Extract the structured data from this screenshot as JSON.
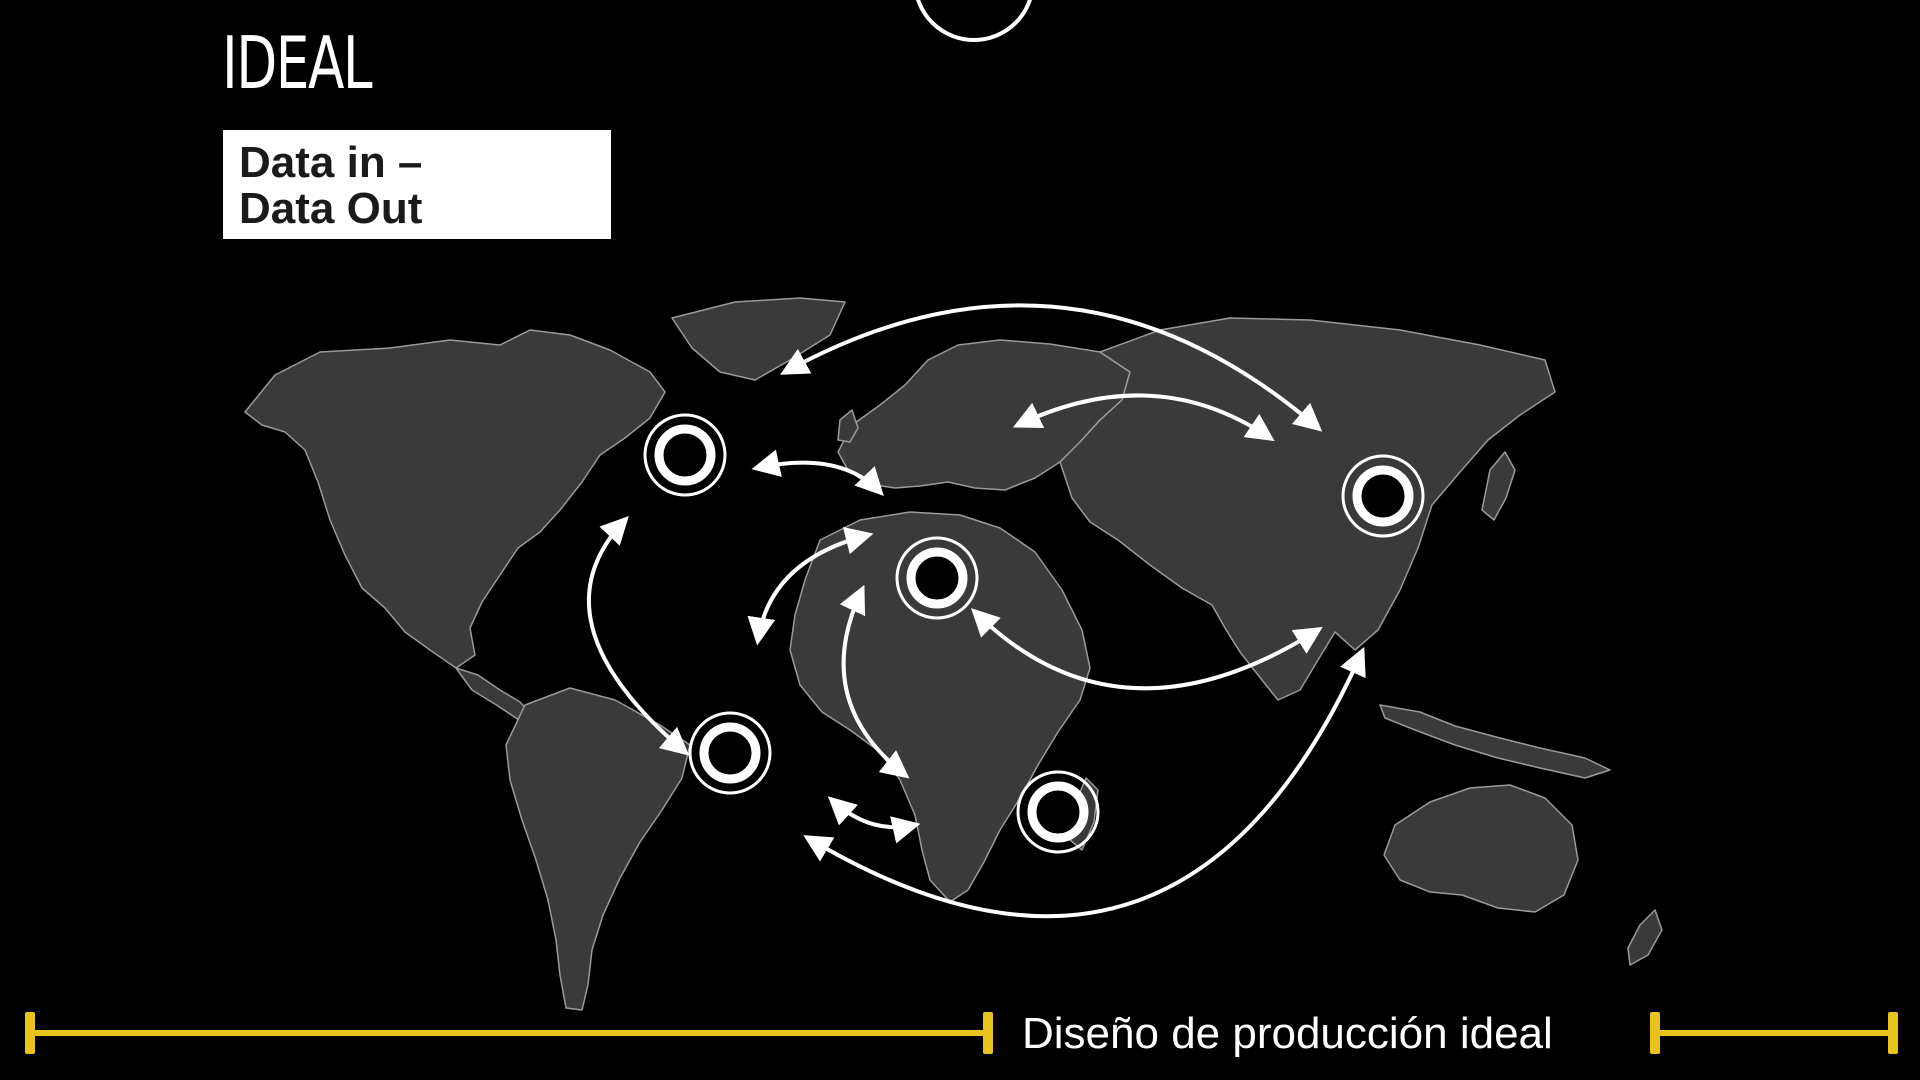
{
  "slide": {
    "title": "IDEAL",
    "badge_lines": [
      "Data in –",
      "Data Out"
    ],
    "footer_caption": "Diseño de producción ideal"
  },
  "map": {
    "land_color": "#3a3a3a",
    "line_color": "#ffffff",
    "hub_icon": "ring-hub-icon",
    "hubs": [
      "north-america",
      "south-america",
      "north-africa",
      "southern-africa",
      "east-asia"
    ]
  },
  "colors": {
    "background": "#000000",
    "accent": "#e8c31d",
    "badge_background": "#ffffff",
    "badge_text": "#1a1a1a"
  }
}
